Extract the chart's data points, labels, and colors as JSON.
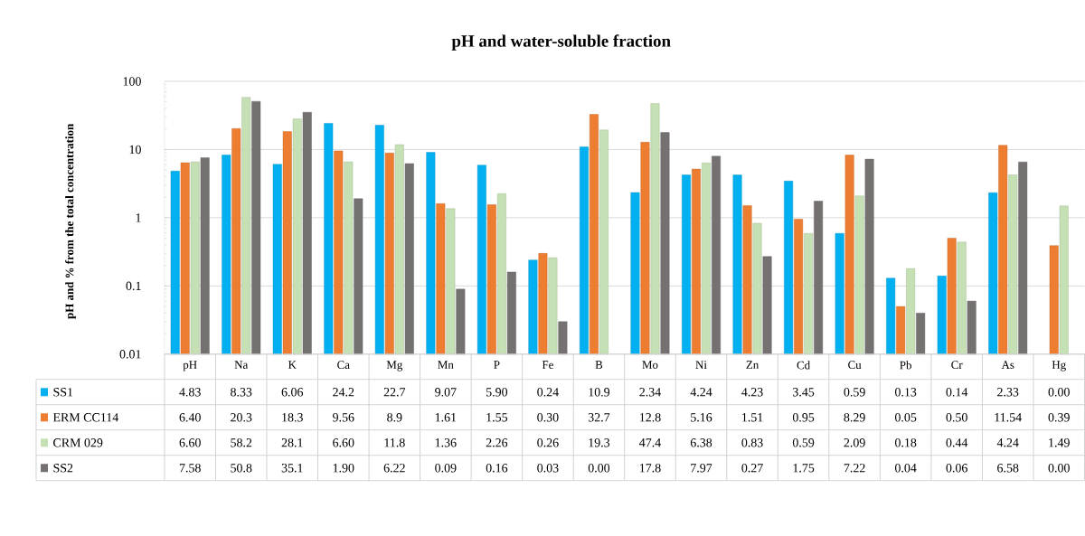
{
  "chart_data": {
    "type": "bar",
    "title": "pH and water-soluble fraction",
    "ylabel": "pH and % from the total concentration",
    "categories": [
      "pH",
      "Na",
      "K",
      "Ca",
      "Mg",
      "Mn",
      "P",
      "Fe",
      "B",
      "Mo",
      "Ni",
      "Zn",
      "Cd",
      "Cu",
      "Pb",
      "Cr",
      "As",
      "Hg"
    ],
    "series": [
      {
        "name": "SS1",
        "color": "#00b0f0",
        "values": [
          4.83,
          8.33,
          6.06,
          24.2,
          22.7,
          9.07,
          5.9,
          0.24,
          10.9,
          2.34,
          4.24,
          4.23,
          3.45,
          0.59,
          0.13,
          0.14,
          2.33,
          null
        ],
        "value_labels": [
          "4.83",
          "8.33",
          "6.06",
          "24.2",
          "22.7",
          "9.07",
          "5.90",
          "0.24",
          "10.9",
          "2.34",
          "4.24",
          "4.23",
          "3.45",
          "0.59",
          "0.13",
          "0.14",
          "2.33",
          "0.00"
        ]
      },
      {
        "name": "ERM CC114",
        "color": "#ed7d31",
        "values": [
          6.4,
          20.3,
          18.3,
          9.56,
          8.9,
          1.61,
          1.55,
          0.3,
          32.7,
          12.8,
          5.16,
          1.51,
          0.95,
          8.29,
          0.05,
          0.5,
          11.54,
          0.39
        ],
        "value_labels": [
          "6.40",
          "20.3",
          "18.3",
          "9.56",
          "8.9",
          "1.61",
          "1.55",
          "0.30",
          "32.7",
          "12.8",
          "5.16",
          "1.51",
          "0.95",
          "8.29",
          "0.05",
          "0.50",
          "11.54",
          "0.39"
        ]
      },
      {
        "name": "CRM 029",
        "color": "#c5e0b4",
        "values": [
          6.6,
          58.2,
          28.1,
          6.6,
          11.8,
          1.36,
          2.26,
          0.26,
          19.3,
          47.4,
          6.38,
          0.83,
          0.59,
          2.09,
          0.18,
          0.44,
          4.24,
          1.49
        ],
        "value_labels": [
          "6.60",
          "58.2",
          "28.1",
          "6.60",
          "11.8",
          "1.36",
          "2.26",
          "0.26",
          "19.3",
          "47.4",
          "6.38",
          "0.83",
          "0.59",
          "2.09",
          "0.18",
          "0.44",
          "4.24",
          "1.49"
        ]
      },
      {
        "name": "SS2",
        "color": "#767171",
        "values": [
          7.58,
          50.8,
          35.1,
          1.9,
          6.22,
          0.09,
          0.16,
          0.03,
          null,
          17.8,
          7.97,
          0.27,
          1.75,
          7.22,
          0.04,
          0.06,
          6.58,
          null
        ],
        "value_labels": [
          "7.58",
          "50.8",
          "35.1",
          "1.90",
          "6.22",
          "0.09",
          "0.16",
          "0.03",
          "0.00",
          "17.8",
          "7.97",
          "0.27",
          "1.75",
          "7.22",
          "0.04",
          "0.06",
          "6.58",
          "0.00"
        ]
      }
    ],
    "log": true,
    "ylim": [
      0.01,
      100
    ],
    "yticks": [
      0.01,
      0.1,
      1,
      10,
      100
    ],
    "grid": "y",
    "legend": "bottom"
  }
}
